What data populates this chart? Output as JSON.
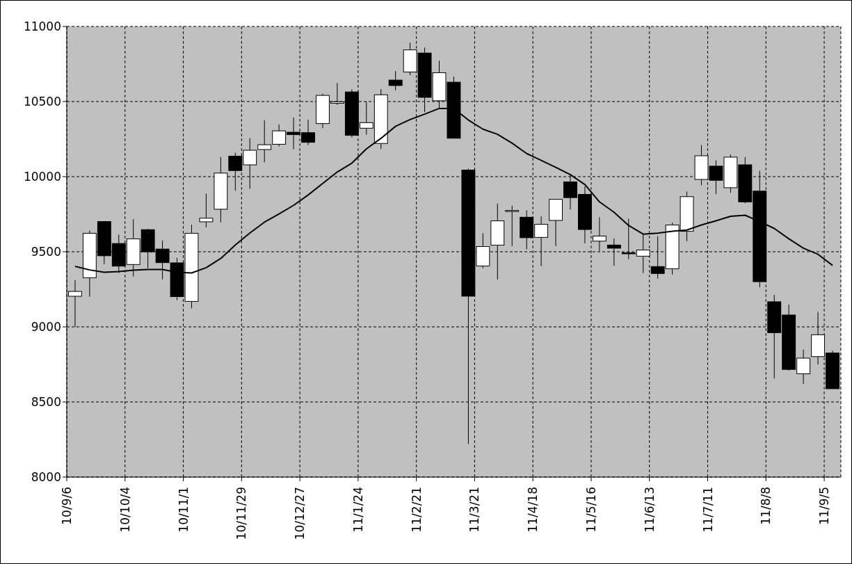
{
  "chart_data": {
    "type": "candlestick",
    "x": [
      "2010-09-10",
      "2010-09-17",
      "2010-09-24",
      "2010-10-01",
      "2010-10-08",
      "2010-10-15",
      "2010-10-22",
      "2010-10-29",
      "2010-11-05",
      "2010-11-12",
      "2010-11-19",
      "2010-11-26",
      "2010-12-03",
      "2010-12-10",
      "2010-12-17",
      "2010-12-24",
      "2010-12-31",
      "2011-01-07",
      "2011-01-14",
      "2011-01-21",
      "2011-01-28",
      "2011-02-04",
      "2011-02-11",
      "2011-02-18",
      "2011-02-25",
      "2011-03-04",
      "2011-03-11",
      "2011-03-18",
      "2011-03-25",
      "2011-04-01",
      "2011-04-08",
      "2011-04-15",
      "2011-04-22",
      "2011-04-29",
      "2011-05-06",
      "2011-05-13",
      "2011-05-20",
      "2011-05-27",
      "2011-06-03",
      "2011-06-10",
      "2011-06-17",
      "2011-06-24",
      "2011-07-01",
      "2011-07-08",
      "2011-07-15",
      "2011-07-22",
      "2011-07-29",
      "2011-08-05",
      "2011-08-12",
      "2011-08-19",
      "2011-08-26",
      "2011-09-02",
      "2011-09-09"
    ],
    "ohlc": [
      [
        9204,
        9311,
        9000,
        9236
      ],
      [
        9328,
        9641,
        9202,
        9623
      ],
      [
        9701,
        9705,
        9418,
        9474
      ],
      [
        9555,
        9615,
        9359,
        9405
      ],
      [
        9416,
        9717,
        9336,
        9586
      ],
      [
        9647,
        9652,
        9391,
        9500
      ],
      [
        9518,
        9574,
        9317,
        9428
      ],
      [
        9426,
        9459,
        9179,
        9202
      ],
      [
        9171,
        9680,
        9125,
        9623
      ],
      [
        9700,
        9887,
        9663,
        9724
      ],
      [
        9784,
        10131,
        9697,
        10024
      ],
      [
        10136,
        10159,
        9907,
        10041
      ],
      [
        10079,
        10256,
        9921,
        10176
      ],
      [
        10181,
        10376,
        10096,
        10213
      ],
      [
        10216,
        10348,
        10202,
        10305
      ],
      [
        10296,
        10394,
        10183,
        10280
      ],
      [
        10293,
        10380,
        10211,
        10229
      ],
      [
        10354,
        10552,
        10323,
        10541
      ],
      [
        10489,
        10624,
        10478,
        10499
      ],
      [
        10564,
        10581,
        10262,
        10276
      ],
      [
        10323,
        10500,
        10280,
        10360
      ],
      [
        10222,
        10583,
        10185,
        10545
      ],
      [
        10643,
        10703,
        10575,
        10607
      ],
      [
        10697,
        10892,
        10676,
        10844
      ],
      [
        10823,
        10859,
        10431,
        10529
      ],
      [
        10506,
        10772,
        10454,
        10692
      ],
      [
        10629,
        10666,
        10257,
        10257
      ],
      [
        10044,
        10053,
        8225,
        9207
      ],
      [
        9406,
        9624,
        9391,
        9535
      ],
      [
        9545,
        9821,
        9317,
        9706
      ],
      [
        9770,
        9807,
        9538,
        9775
      ],
      [
        9730,
        9775,
        9517,
        9594
      ],
      [
        9596,
        9735,
        9405,
        9683
      ],
      [
        9709,
        9852,
        9538,
        9849
      ],
      [
        9965,
        10008,
        9782,
        9861
      ],
      [
        9882,
        9935,
        9557,
        9649
      ],
      [
        9571,
        9730,
        9506,
        9605
      ],
      [
        9545,
        9588,
        9408,
        9524
      ],
      [
        9494,
        9720,
        9451,
        9490
      ],
      [
        9471,
        9618,
        9359,
        9512
      ],
      [
        9402,
        9603,
        9322,
        9356
      ],
      [
        9388,
        9694,
        9349,
        9678
      ],
      [
        9637,
        9901,
        9571,
        9867
      ],
      [
        9982,
        10210,
        9944,
        10139
      ],
      [
        10070,
        10108,
        9884,
        9976
      ],
      [
        9927,
        10148,
        9893,
        10130
      ],
      [
        10079,
        10131,
        9824,
        9833
      ],
      [
        9904,
        10039,
        9266,
        9303
      ],
      [
        9167,
        9213,
        8658,
        8962
      ],
      [
        9079,
        9148,
        8711,
        8718
      ],
      [
        8688,
        8849,
        8621,
        8792
      ],
      [
        8803,
        9099,
        8750,
        8948
      ],
      [
        8826,
        8841,
        8589,
        8589
      ]
    ],
    "series": [
      {
        "type": "line",
        "color": "#000000",
        "values": [
          9403,
          9379,
          9363,
          9368,
          9377,
          9382,
          9382,
          9363,
          9359,
          9394,
          9455,
          9545,
          9625,
          9697,
          9752,
          9809,
          9878,
          9955,
          10031,
          10090,
          10185,
          10255,
          10335,
          10380,
          10416,
          10454,
          10454,
          10377,
          10316,
          10282,
          10223,
          10154,
          10108,
          10062,
          10013,
          9947,
          9832,
          9763,
          9675,
          9617,
          9624,
          9637,
          9645,
          9678,
          9706,
          9736,
          9743,
          9701,
          9655,
          9586,
          9524,
          9483,
          9409
        ]
      }
    ],
    "xlim": [
      "2010-09-06",
      "2011-09-13"
    ],
    "xticks": [
      {
        "value": "2010-09-06",
        "label": "10/9/6"
      },
      {
        "value": "2010-10-04",
        "label": "10/10/4"
      },
      {
        "value": "2010-11-01",
        "label": "10/11/1"
      },
      {
        "value": "2010-11-29",
        "label": "10/11/29"
      },
      {
        "value": "2010-12-27",
        "label": "10/12/27"
      },
      {
        "value": "2011-01-24",
        "label": "11/1/24"
      },
      {
        "value": "2011-02-21",
        "label": "11/2/21"
      },
      {
        "value": "2011-03-21",
        "label": "11/3/21"
      },
      {
        "value": "2011-04-18",
        "label": "11/4/18"
      },
      {
        "value": "2011-05-16",
        "label": "11/5/16"
      },
      {
        "value": "2011-06-13",
        "label": "11/6/13"
      },
      {
        "value": "2011-07-11",
        "label": "11/7/11"
      },
      {
        "value": "2011-08-08",
        "label": "11/8/8"
      },
      {
        "value": "2011-09-05",
        "label": "11/9/5"
      }
    ],
    "ylim": [
      8000,
      11000
    ],
    "yticks": [
      8000,
      8500,
      9000,
      9500,
      10000,
      10500,
      11000
    ],
    "grid": true
  }
}
